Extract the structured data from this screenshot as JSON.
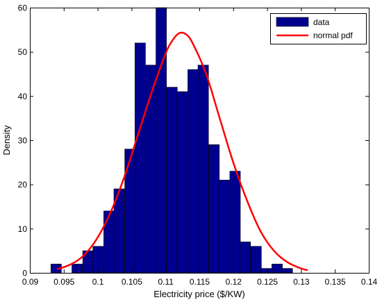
{
  "chart_data": {
    "type": "bar",
    "xlabel": "Electricity price ($/KW)",
    "ylabel": "Density",
    "xlim": [
      0.09,
      0.14
    ],
    "ylim": [
      0,
      60
    ],
    "xticks": [
      "0.09",
      "0.095",
      "0.1",
      "0.105",
      "0.11",
      "0.115",
      "0.12",
      "0.125",
      "0.13",
      "0.135",
      "0.14"
    ],
    "yticks": [
      "0",
      "10",
      "20",
      "30",
      "40",
      "50",
      "60"
    ],
    "grid": false,
    "legend_position": "top-right",
    "colors": {
      "bars": "#00008f",
      "curve": "#ff0000"
    },
    "series": [
      {
        "name": "data",
        "type": "bar",
        "bin_width": 0.00155,
        "bins": [
          {
            "x0": 0.0931,
            "y": 2
          },
          {
            "x0": 0.0947,
            "y": 0
          },
          {
            "x0": 0.0962,
            "y": 2
          },
          {
            "x0": 0.0978,
            "y": 5
          },
          {
            "x0": 0.0993,
            "y": 6
          },
          {
            "x0": 0.1009,
            "y": 14
          },
          {
            "x0": 0.1024,
            "y": 19
          },
          {
            "x0": 0.104,
            "y": 28
          },
          {
            "x0": 0.1055,
            "y": 52
          },
          {
            "x0": 0.1071,
            "y": 47
          },
          {
            "x0": 0.1086,
            "y": 60
          },
          {
            "x0": 0.1102,
            "y": 42
          },
          {
            "x0": 0.1117,
            "y": 41
          },
          {
            "x0": 0.1133,
            "y": 46
          },
          {
            "x0": 0.1148,
            "y": 47
          },
          {
            "x0": 0.1164,
            "y": 29
          },
          {
            "x0": 0.1179,
            "y": 21
          },
          {
            "x0": 0.1195,
            "y": 23
          },
          {
            "x0": 0.121,
            "y": 7
          },
          {
            "x0": 0.1226,
            "y": 6
          },
          {
            "x0": 0.1241,
            "y": 1
          },
          {
            "x0": 0.1257,
            "y": 2
          },
          {
            "x0": 0.1272,
            "y": 1
          }
        ]
      },
      {
        "name": "normal pdf",
        "type": "line",
        "x": [
          0.094,
          0.096,
          0.098,
          0.1,
          0.102,
          0.104,
          0.106,
          0.108,
          0.11,
          0.111,
          0.112,
          0.113,
          0.114,
          0.116,
          0.118,
          0.12,
          0.122,
          0.124,
          0.126,
          0.128,
          0.13,
          0.131
        ],
        "y": [
          0.8,
          1.9,
          4.0,
          8.0,
          14.0,
          22.0,
          31.5,
          41.0,
          49.5,
          52.5,
          54.2,
          54.0,
          52.0,
          45.0,
          35.0,
          25.0,
          16.5,
          9.5,
          5.0,
          2.4,
          1.0,
          0.6
        ]
      }
    ]
  }
}
